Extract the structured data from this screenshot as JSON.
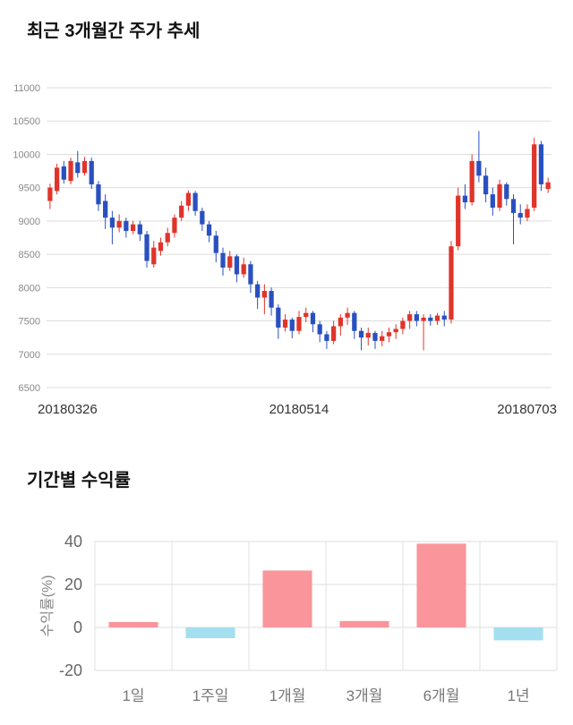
{
  "page": {
    "section1_title": "최근 3개월간 주가 추세",
    "section2_title": "기간별 수익률"
  },
  "chart_data": [
    {
      "type": "candlestick",
      "title": "최근 3개월간 주가 추세",
      "ylim": [
        6500,
        11000
      ],
      "yticks": [
        6500,
        7000,
        7500,
        8000,
        8500,
        9000,
        9500,
        10000,
        10500,
        11000
      ],
      "x_axis_labels": [
        "20180326",
        "20180514",
        "20180703"
      ],
      "grid": true,
      "up_color": "#e0342b",
      "down_color": "#2a50c0",
      "candles": [
        [
          9300,
          9560,
          9180,
          9500
        ],
        [
          9450,
          9860,
          9400,
          9800
        ],
        [
          9820,
          9900,
          9560,
          9620
        ],
        [
          9600,
          9950,
          9550,
          9900
        ],
        [
          9880,
          10050,
          9650,
          9720
        ],
        [
          9720,
          9960,
          9680,
          9900
        ],
        [
          9900,
          9950,
          9480,
          9550
        ],
        [
          9550,
          9600,
          9150,
          9250
        ],
        [
          9300,
          9400,
          8880,
          9050
        ],
        [
          9050,
          9150,
          8650,
          8900
        ],
        [
          8900,
          9100,
          8830,
          9000
        ],
        [
          9000,
          9050,
          8750,
          8850
        ],
        [
          8850,
          9000,
          8800,
          8950
        ],
        [
          8950,
          9000,
          8700,
          8800
        ],
        [
          8800,
          8850,
          8300,
          8400
        ],
        [
          8350,
          8700,
          8300,
          8600
        ],
        [
          8550,
          8750,
          8480,
          8680
        ],
        [
          8680,
          8900,
          8620,
          8820
        ],
        [
          8820,
          9100,
          8750,
          9050
        ],
        [
          9050,
          9300,
          9000,
          9230
        ],
        [
          9230,
          9460,
          9150,
          9420
        ],
        [
          9420,
          9450,
          9080,
          9150
        ],
        [
          9150,
          9200,
          8850,
          8950
        ],
        [
          8950,
          9000,
          8680,
          8780
        ],
        [
          8780,
          8850,
          8380,
          8520
        ],
        [
          8520,
          8600,
          8180,
          8300
        ],
        [
          8300,
          8550,
          8250,
          8470
        ],
        [
          8470,
          8500,
          8080,
          8200
        ],
        [
          8200,
          8450,
          8150,
          8350
        ],
        [
          8350,
          8400,
          7920,
          8050
        ],
        [
          8050,
          8100,
          7680,
          7850
        ],
        [
          7850,
          8050,
          7600,
          7950
        ],
        [
          7950,
          8000,
          7580,
          7700
        ],
        [
          7700,
          7750,
          7230,
          7400
        ],
        [
          7400,
          7600,
          7340,
          7520
        ],
        [
          7520,
          7550,
          7240,
          7350
        ],
        [
          7350,
          7650,
          7300,
          7560
        ],
        [
          7560,
          7700,
          7480,
          7620
        ],
        [
          7620,
          7650,
          7330,
          7450
        ],
        [
          7450,
          7500,
          7180,
          7300
        ],
        [
          7300,
          7350,
          7080,
          7200
        ],
        [
          7200,
          7500,
          7150,
          7420
        ],
        [
          7420,
          7600,
          7280,
          7550
        ],
        [
          7550,
          7700,
          7440,
          7620
        ],
        [
          7620,
          7650,
          7230,
          7350
        ],
        [
          7350,
          7400,
          7060,
          7250
        ],
        [
          7250,
          7400,
          7130,
          7320
        ],
        [
          7320,
          7350,
          7080,
          7200
        ],
        [
          7200,
          7350,
          7120,
          7270
        ],
        [
          7270,
          7400,
          7180,
          7330
        ],
        [
          7330,
          7450,
          7230,
          7380
        ],
        [
          7380,
          7550,
          7300,
          7500
        ],
        [
          7500,
          7650,
          7380,
          7600
        ],
        [
          7600,
          7650,
          7420,
          7500
        ],
        [
          7500,
          7600,
          7060,
          7550
        ],
        [
          7550,
          7600,
          7430,
          7500
        ],
        [
          7500,
          7620,
          7440,
          7580
        ],
        [
          7580,
          7650,
          7420,
          7520
        ],
        [
          7520,
          8700,
          7460,
          8620
        ],
        [
          8620,
          9500,
          8560,
          9380
        ],
        [
          9380,
          9550,
          9180,
          9280
        ],
        [
          9280,
          10000,
          9230,
          9900
        ],
        [
          9900,
          10350,
          9580,
          9680
        ],
        [
          9680,
          9800,
          9280,
          9400
        ],
        [
          9400,
          9500,
          9080,
          9200
        ],
        [
          9200,
          9620,
          9150,
          9550
        ],
        [
          9550,
          9580,
          9230,
          9330
        ],
        [
          9330,
          9400,
          8650,
          9120
        ],
        [
          9120,
          9250,
          8950,
          9050
        ],
        [
          9050,
          9250,
          9000,
          9180
        ],
        [
          9200,
          10250,
          9150,
          10150
        ],
        [
          10150,
          10200,
          9450,
          9550
        ],
        [
          9480,
          9650,
          9420,
          9580
        ]
      ]
    },
    {
      "type": "bar",
      "categories": [
        "1일",
        "1주일",
        "1개월",
        "3개월",
        "6개월",
        "1년"
      ],
      "values": [
        2.5,
        -5,
        26.5,
        3,
        39,
        -6
      ],
      "title": "기간별 수익률",
      "xlabel": "",
      "ylabel": "수익률(%)",
      "ylim": [
        -20,
        40
      ],
      "yticks": [
        -20,
        0,
        20,
        40
      ],
      "grid": true,
      "legend": false,
      "positive_color": "#f9959b",
      "negative_color": "#a3dfef"
    }
  ]
}
